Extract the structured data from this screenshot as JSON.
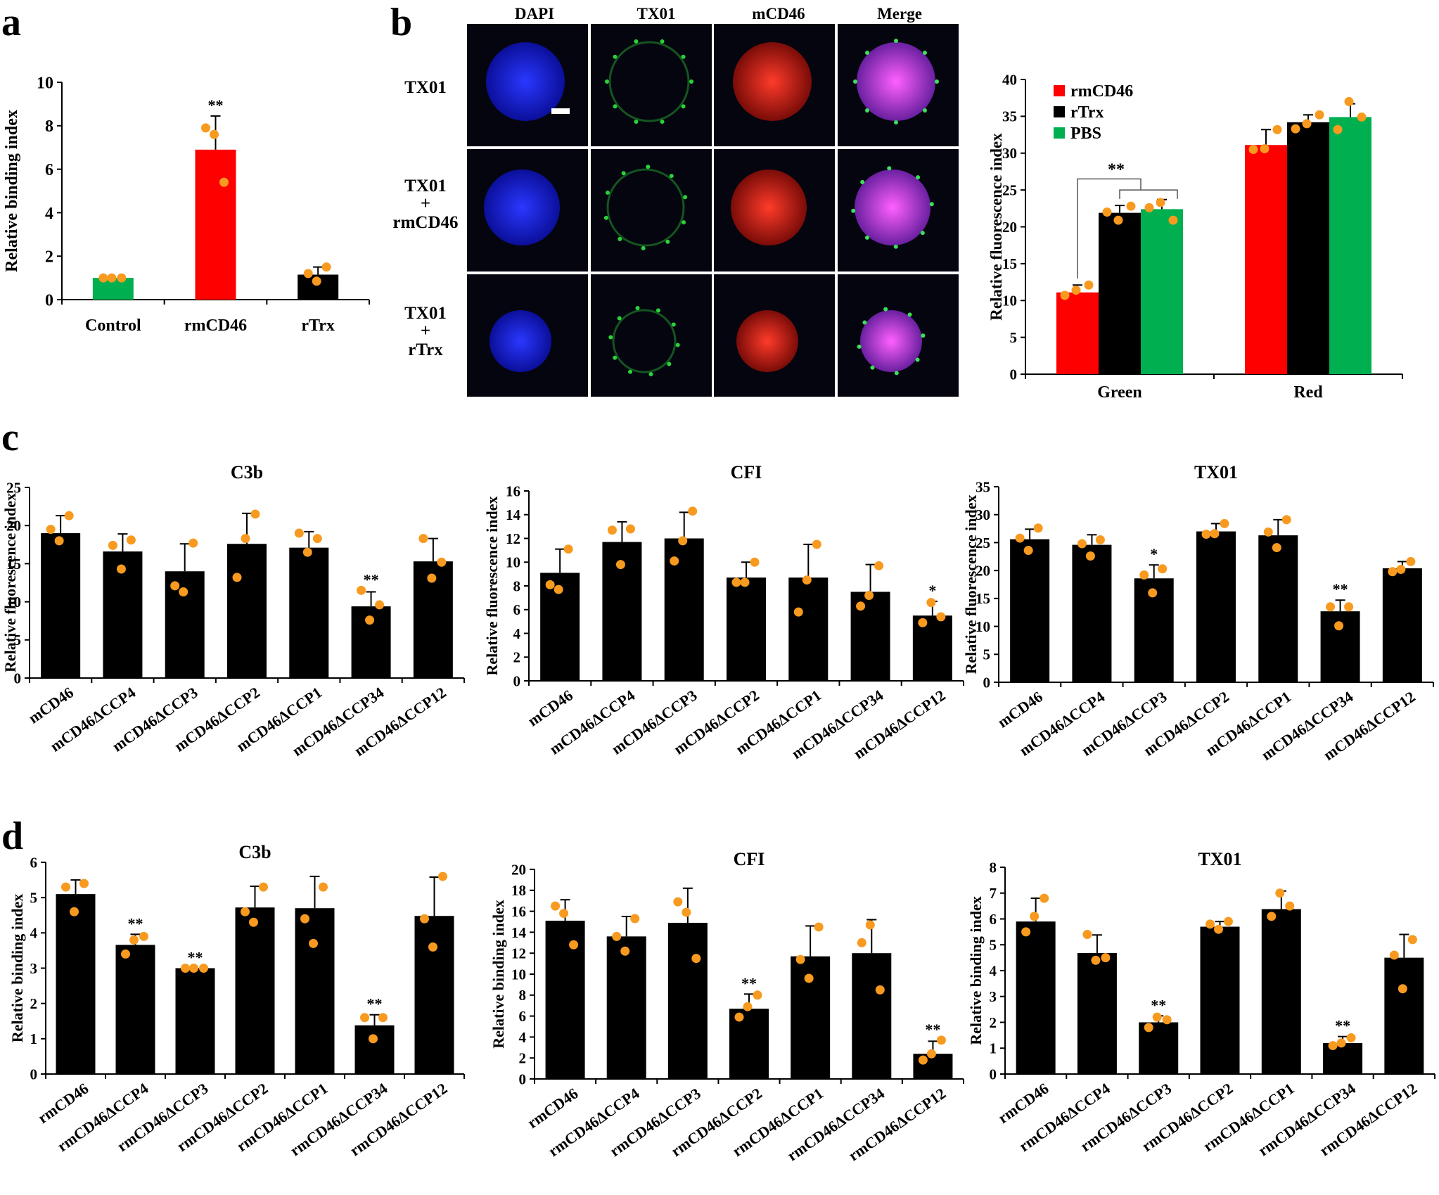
{
  "panel_letters": [
    "a",
    "b",
    "c",
    "d"
  ],
  "colors": {
    "red": "#ff0000",
    "green": "#00b050",
    "black": "#000000",
    "dot": "#f79a1f"
  },
  "microscopy": {
    "columns": [
      "DAPI",
      "TX01",
      "mCD46",
      "Merge"
    ],
    "rows": [
      [
        "TX01"
      ],
      [
        "TX01",
        "+",
        "rmCD46"
      ],
      [
        "TX01",
        "+",
        "rTrx"
      ]
    ]
  },
  "chart_data": [
    {
      "id": "a",
      "type": "bar",
      "title": "",
      "ylabel": "Relative binding index",
      "ylim": [
        0,
        10
      ],
      "ticks": [
        0,
        2,
        4,
        6,
        8,
        10
      ],
      "categories": [
        "Control",
        "rmCD46",
        "rTrx"
      ],
      "values": [
        1.0,
        6.9,
        1.15
      ],
      "errors": [
        0,
        1.55,
        0.35
      ],
      "colors": [
        "#00b050",
        "#ff0000",
        "#000000"
      ],
      "points": [
        [
          1.0,
          1.0,
          1.0
        ],
        [
          7.9,
          7.6,
          5.4
        ],
        [
          1.2,
          0.85,
          1.5
        ]
      ],
      "sig": [
        "",
        "**",
        ""
      ]
    },
    {
      "id": "b",
      "type": "bar",
      "title": "",
      "ylabel": "Relative fluorescence index",
      "ylim": [
        0,
        40
      ],
      "ticks": [
        0,
        5,
        10,
        15,
        20,
        25,
        30,
        35,
        40
      ],
      "categories": [
        "Green",
        "Red"
      ],
      "series": [
        {
          "name": "rmCD46",
          "color": "#ff0000",
          "values": [
            11.1,
            31.1
          ],
          "errors": [
            1.0,
            2.1
          ],
          "points": [
            [
              10.7,
              11.4,
              12.1
            ],
            [
              30.5,
              30.6,
              33.2
            ]
          ]
        },
        {
          "name": "rTrx",
          "color": "#000000",
          "values": [
            21.9,
            34.2
          ],
          "errors": [
            1.0,
            1.0
          ],
          "points": [
            [
              22.0,
              20.9,
              22.8
            ],
            [
              33.3,
              34.0,
              35.2
            ]
          ]
        },
        {
          "name": "PBS",
          "color": "#00b050",
          "values": [
            22.4,
            34.9
          ],
          "errors": [
            1.3,
            1.8
          ],
          "points": [
            [
              22.6,
              23.3,
              20.9
            ],
            [
              33.2,
              37.0,
              34.9
            ]
          ]
        }
      ],
      "bracket_label": "**",
      "legend": "top-left"
    },
    {
      "id": "c1",
      "type": "bar",
      "title": "C3b",
      "ylabel": "Relative fluorescence index",
      "ylim": [
        0,
        25
      ],
      "ticks": [
        0,
        5,
        10,
        15,
        20,
        25
      ],
      "categories": [
        "mCD46",
        "mCD46ΔCCP4",
        "mCD46ΔCCP3",
        "mCD46ΔCCP2",
        "mCD46ΔCCP1",
        "mCD46ΔCCP34",
        "mCD46ΔCCP12"
      ],
      "values": [
        19.0,
        16.6,
        14.0,
        17.6,
        17.1,
        9.4,
        15.3
      ],
      "errors": [
        2.3,
        2.3,
        3.6,
        4.0,
        2.1,
        1.9,
        3.0
      ],
      "points": [
        [
          19.5,
          18.0,
          21.3
        ],
        [
          17.4,
          14.3,
          18.1
        ],
        [
          12.1,
          11.3,
          17.7
        ],
        [
          13.2,
          18.3,
          21.5
        ],
        [
          19.0,
          16.5,
          18.3
        ],
        [
          11.5,
          7.6,
          9.6
        ],
        [
          18.3,
          13.1,
          15.2
        ]
      ],
      "sig": [
        "",
        "",
        "",
        "",
        "",
        "**",
        ""
      ]
    },
    {
      "id": "c2",
      "type": "bar",
      "title": "CFI",
      "ylabel": "Relative fluorescence index",
      "ylim": [
        0,
        16
      ],
      "ticks": [
        0,
        2,
        4,
        6,
        8,
        10,
        12,
        14,
        16
      ],
      "categories": [
        "mCD46",
        "mCD46ΔCCP4",
        "mCD46ΔCCP3",
        "mCD46ΔCCP2",
        "mCD46ΔCCP1",
        "mCD46ΔCCP34",
        "mCD46ΔCCP12"
      ],
      "values": [
        9.1,
        11.7,
        12.0,
        8.7,
        8.7,
        7.5,
        5.5
      ],
      "errors": [
        2.0,
        1.7,
        2.2,
        1.3,
        2.8,
        2.3,
        1.2
      ],
      "points": [
        [
          8.1,
          7.7,
          11.1
        ],
        [
          12.7,
          9.8,
          12.8
        ],
        [
          10.1,
          11.8,
          14.3
        ],
        [
          8.3,
          8.3,
          10.0
        ],
        [
          5.8,
          8.5,
          11.5
        ],
        [
          6.3,
          7.2,
          9.7
        ],
        [
          4.9,
          6.6,
          5.4
        ]
      ],
      "sig": [
        "",
        "",
        "",
        "",
        "",
        "",
        "*"
      ]
    },
    {
      "id": "c3",
      "type": "bar",
      "title": "TX01",
      "ylabel": "Relative fluorescence index",
      "ylim": [
        0,
        35
      ],
      "ticks": [
        0,
        5,
        10,
        15,
        20,
        25,
        30,
        35
      ],
      "categories": [
        "mCD46",
        "mCD46ΔCCP4",
        "mCD46ΔCCP3",
        "mCD46ΔCCP2",
        "mCD46ΔCCP1",
        "mCD46ΔCCP34",
        "mCD46ΔCCP12"
      ],
      "values": [
        25.6,
        24.6,
        18.6,
        27.0,
        26.3,
        12.7,
        20.4
      ],
      "errors": [
        1.8,
        1.8,
        2.4,
        1.4,
        2.8,
        2.0,
        1.2
      ],
      "points": [
        [
          25.8,
          23.6,
          27.6
        ],
        [
          24.8,
          22.6,
          25.5
        ],
        [
          19.2,
          16.0,
          20.3
        ],
        [
          26.5,
          26.6,
          28.4
        ],
        [
          26.9,
          24.1,
          29.1
        ],
        [
          13.5,
          10.1,
          13.5
        ],
        [
          19.8,
          20.2,
          21.6
        ]
      ],
      "sig": [
        "",
        "",
        "*",
        "",
        "",
        "**",
        ""
      ]
    },
    {
      "id": "d1",
      "type": "bar",
      "title": "C3b",
      "ylabel": "Relative binding index",
      "ylim": [
        0,
        6
      ],
      "ticks": [
        0,
        1,
        2,
        3,
        4,
        5,
        6
      ],
      "categories": [
        "rmCD46",
        "rmCD46ΔCCP4",
        "rmCD46ΔCCP3",
        "rmCD46ΔCCP2",
        "rmCD46ΔCCP1",
        "rmCD46ΔCCP34",
        "rmCD46ΔCCP12"
      ],
      "values": [
        5.1,
        3.66,
        3.0,
        4.72,
        4.7,
        1.38,
        4.48
      ],
      "errors": [
        0.4,
        0.3,
        0.0,
        0.6,
        0.9,
        0.3,
        1.1
      ],
      "points": [
        [
          5.3,
          4.6,
          5.4
        ],
        [
          3.4,
          3.8,
          3.9
        ],
        [
          3.0,
          3.0,
          3.0
        ],
        [
          4.6,
          4.3,
          5.3
        ],
        [
          4.4,
          3.7,
          5.3
        ],
        [
          1.6,
          1.0,
          1.6
        ],
        [
          4.4,
          3.6,
          5.6
        ]
      ],
      "sig": [
        "",
        "**",
        "**",
        "",
        "",
        "**",
        ""
      ]
    },
    {
      "id": "d2",
      "type": "bar",
      "title": "CFI",
      "ylabel": "Relative binding index",
      "ylim": [
        0,
        20
      ],
      "ticks": [
        0,
        2,
        4,
        6,
        8,
        10,
        12,
        14,
        16,
        18,
        20
      ],
      "categories": [
        "rmCD46",
        "rmCD46ΔCCP4",
        "rmCD46ΔCCP3",
        "rmCD46ΔCCP2",
        "rmCD46ΔCCP1",
        "rmCD46ΔCCP34",
        "rmCD46ΔCCP12"
      ],
      "values": [
        15.1,
        13.6,
        14.9,
        6.7,
        11.7,
        12.0,
        2.4
      ],
      "errors": [
        2.0,
        1.9,
        3.3,
        1.4,
        2.9,
        3.2,
        1.2
      ],
      "points": [
        [
          16.5,
          15.8,
          12.8
        ],
        [
          13.6,
          12.2,
          15.3
        ],
        [
          16.9,
          15.9,
          11.5
        ],
        [
          5.9,
          6.9,
          8.0
        ],
        [
          11.4,
          9.6,
          14.5
        ],
        [
          13.0,
          14.7,
          8.5
        ],
        [
          1.8,
          2.4,
          3.7
        ]
      ],
      "sig": [
        "",
        "",
        "",
        "**",
        "",
        "",
        "**"
      ]
    },
    {
      "id": "d3",
      "type": "bar",
      "title": "TX01",
      "ylabel": "Relative binding index",
      "ylim": [
        0,
        8
      ],
      "ticks": [
        0,
        1,
        2,
        3,
        4,
        5,
        6,
        7,
        8
      ],
      "categories": [
        "rmCD46",
        "rmCD46ΔCCP4",
        "rmCD46ΔCCP3",
        "rmCD46ΔCCP2",
        "rmCD46ΔCCP1",
        "rmCD46ΔCCP34",
        "rmCD46ΔCCP12"
      ],
      "values": [
        5.9,
        4.68,
        2.0,
        5.7,
        6.38,
        1.2,
        4.5
      ],
      "errors": [
        0.9,
        0.7,
        0.25,
        0.2,
        0.7,
        0.25,
        0.9
      ],
      "points": [
        [
          5.5,
          6.1,
          6.8
        ],
        [
          5.4,
          4.4,
          4.5
        ],
        [
          1.8,
          2.2,
          2.1
        ],
        [
          5.8,
          5.6,
          5.9
        ],
        [
          6.1,
          7.0,
          6.5
        ],
        [
          1.1,
          1.2,
          1.4
        ],
        [
          4.6,
          3.3,
          5.2
        ]
      ],
      "sig": [
        "",
        "",
        "**",
        "",
        "",
        "**",
        ""
      ]
    }
  ]
}
